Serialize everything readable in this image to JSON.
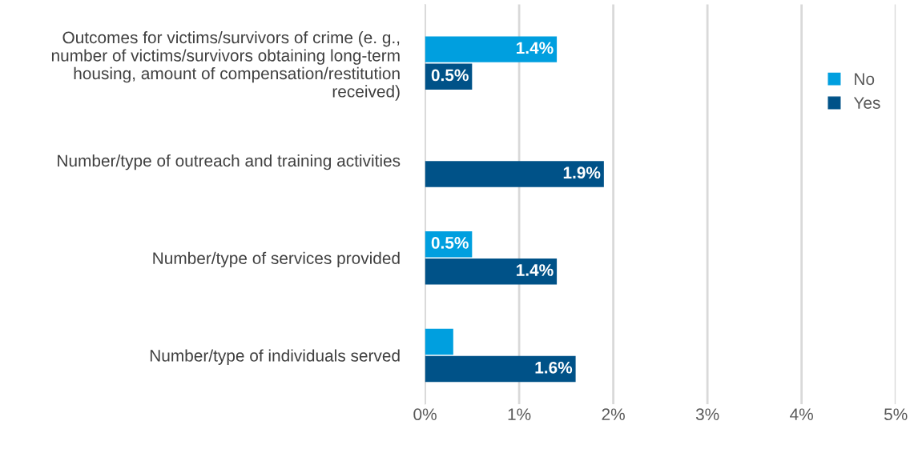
{
  "chart_data": {
    "type": "bar",
    "orientation": "horizontal",
    "categories": [
      "Outcomes for victims/survivors of crime (e. g.,\nnumber of victims/survivors obtaining long-term\nhousing, amount of compensation/restitution\nreceived)",
      "Number/type of outreach and training activities",
      "Number/type of services provided",
      "Number/type of individuals served"
    ],
    "series": [
      {
        "name": "No",
        "color": "#009fdf",
        "values": [
          1.4,
          null,
          0.5,
          0.3
        ],
        "value_labels": [
          "1.4%",
          null,
          "0.5%",
          null
        ]
      },
      {
        "name": "Yes",
        "color": "#005288",
        "values": [
          0.5,
          1.9,
          1.4,
          1.6
        ],
        "value_labels": [
          "0.5%",
          "1.9%",
          "1.4%",
          "1.6%"
        ]
      }
    ],
    "xlim": [
      0,
      5
    ],
    "xticks": [
      {
        "value": 0,
        "label": "0%"
      },
      {
        "value": 1,
        "label": "1%"
      },
      {
        "value": 2,
        "label": "2%"
      },
      {
        "value": 3,
        "label": "3%"
      },
      {
        "value": 4,
        "label": "4%"
      },
      {
        "value": 5,
        "label": "5%"
      }
    ],
    "grid": "x",
    "legend": "right"
  }
}
